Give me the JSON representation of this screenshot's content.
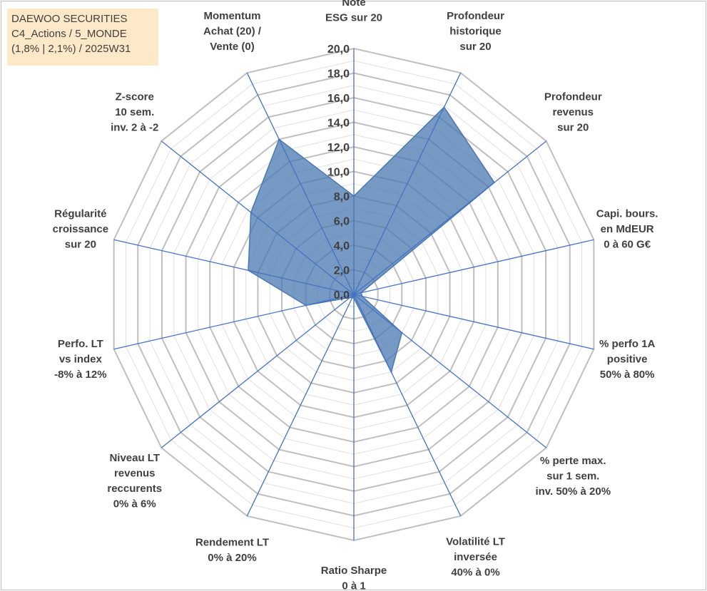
{
  "title_box": {
    "line1": "DAEWOO SECURITIES",
    "line2": "C4_Actions / 5_MONDE",
    "line3": "(1,8% | 2,1%) / 2025W31"
  },
  "colors": {
    "accent_fill": "#4a78b0",
    "spoke": "#4472c4",
    "grid_major": "#bfbfbf",
    "grid_minor": "#e0e0e0",
    "title_bg": "#fde9c8"
  },
  "chart_data": {
    "type": "radar",
    "title": "",
    "rmin": 0,
    "rmax": 20,
    "major_step": 2,
    "minor_step": 1,
    "tick_labels": [
      "0,0",
      "2,0",
      "4,0",
      "6,0",
      "8,0",
      "10,0",
      "12,0",
      "14,0",
      "16,0",
      "18,0",
      "20,0"
    ],
    "axes": [
      {
        "label": [
          "Note",
          "ESG sur 20"
        ],
        "value": 8.0
      },
      {
        "label": [
          "Profondeur",
          "historique",
          "sur 20"
        ],
        "value": 16.9
      },
      {
        "label": [
          "Profondeur",
          "revenus",
          "sur 20"
        ],
        "value": 14.6
      },
      {
        "label": [
          "Capi. bours.",
          "en MdEUR",
          "0 à 60 G€"
        ],
        "value": 0.6
      },
      {
        "label": [
          "% perfo 1A",
          "positive",
          "50% à 80%"
        ],
        "value": 0.7
      },
      {
        "label": [
          "% perte max.",
          "sur 1 sem.",
          "inv. 50% à 20%"
        ],
        "value": 5.0
      },
      {
        "label": [
          "Volatilité LT",
          "inversée",
          "40% à 0%"
        ],
        "value": 7.0
      },
      {
        "label": [
          "Ratio Sharpe",
          "0 à 1"
        ],
        "value": 0.3
      },
      {
        "label": [
          "Rendement LT",
          "0% à 20%"
        ],
        "value": 0.3
      },
      {
        "label": [
          "Niveau LT",
          "revenus",
          "reccurents",
          "0% à 6%"
        ],
        "value": 0.4
      },
      {
        "label": [
          "Perfo. LT",
          "vs index",
          "-8% à 12%"
        ],
        "value": 4.0
      },
      {
        "label": [
          "Régularité",
          "croissance",
          "sur 20"
        ],
        "value": 8.8
      },
      {
        "label": [
          "Z-score",
          "10 sem.",
          "inv. 2 à -2"
        ],
        "value": 10.7
      },
      {
        "label": [
          "Momentum",
          "Achat (20) /",
          "Vente (0)"
        ],
        "value": 14.0
      }
    ]
  }
}
